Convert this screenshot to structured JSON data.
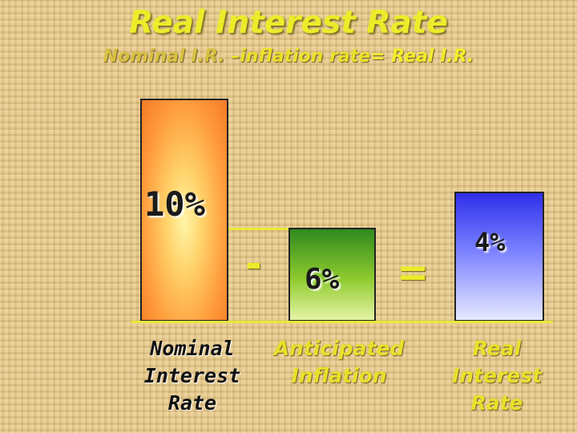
{
  "title": "Real Interest Rate",
  "formula": {
    "nominal": "Nominal I.R.",
    "inflation": " –inflation rate",
    "real": "= Real I.R."
  },
  "bars": {
    "nominal": {
      "value_label": "10%",
      "label": "Nominal\nInterest\nRate",
      "value": 10,
      "color": "#f47a26"
    },
    "inflation": {
      "value_label": "6%",
      "label": "Anticipated\nInflation",
      "value": 6,
      "color": "#2f8a1e"
    },
    "real": {
      "value_label": "4%",
      "label": "Real\nInterest\nRate",
      "value": 4,
      "color": "#2e2fe8"
    }
  },
  "operators": {
    "minus": "-",
    "equals": "="
  }
}
